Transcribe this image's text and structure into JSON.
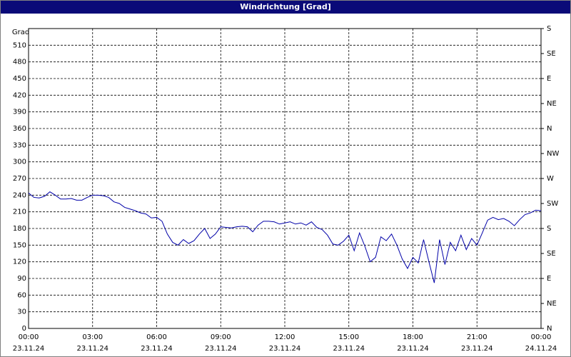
{
  "chart_data": {
    "type": "line",
    "title": "Windrichtung [Grad]",
    "y_label": "Grad",
    "x": [
      0,
      0.25,
      0.5,
      0.75,
      1,
      1.25,
      1.5,
      1.75,
      2,
      2.25,
      2.5,
      2.75,
      3,
      3.25,
      3.5,
      3.75,
      4,
      4.25,
      4.5,
      4.75,
      5,
      5.25,
      5.5,
      5.75,
      6,
      6.25,
      6.5,
      6.75,
      7,
      7.25,
      7.5,
      7.75,
      8,
      8.25,
      8.5,
      8.75,
      9,
      9.25,
      9.5,
      9.75,
      10,
      10.25,
      10.5,
      10.75,
      11,
      11.25,
      11.5,
      11.75,
      12,
      12.25,
      12.5,
      12.75,
      13,
      13.25,
      13.5,
      13.75,
      14,
      14.25,
      14.5,
      14.75,
      15,
      15.25,
      15.5,
      15.75,
      16,
      16.25,
      16.5,
      16.75,
      17,
      17.25,
      17.5,
      17.75,
      18,
      18.25,
      18.5,
      18.75,
      19,
      19.25,
      19.5,
      19.75,
      20,
      20.25,
      20.5,
      20.75,
      21,
      21.25,
      21.5,
      21.75,
      22,
      22.25,
      22.5,
      22.75,
      23,
      23.25,
      23.5,
      23.75,
      24
    ],
    "series": [
      {
        "name": "Windrichtung",
        "color": "#0000a8",
        "values": [
          244,
          236,
          235,
          238,
          246,
          240,
          233,
          233,
          234,
          231,
          231,
          236,
          240,
          240,
          239,
          236,
          228,
          225,
          218,
          215,
          212,
          208,
          206,
          199,
          200,
          193,
          170,
          155,
          150,
          160,
          153,
          158,
          170,
          180,
          162,
          170,
          183,
          182,
          181,
          183,
          184,
          183,
          174,
          186,
          193,
          193,
          192,
          188,
          190,
          192,
          188,
          190,
          186,
          192,
          182,
          178,
          168,
          152,
          150,
          157,
          168,
          140,
          172,
          148,
          120,
          128,
          165,
          158,
          170,
          150,
          125,
          108,
          128,
          118,
          160,
          120,
          82,
          160,
          115,
          155,
          140,
          168,
          142,
          162,
          150,
          172,
          195,
          200,
          196,
          198,
          193,
          185,
          196,
          205,
          208,
          213,
          212
        ]
      }
    ],
    "xlim": [
      0,
      24
    ],
    "xticks": [
      {
        "value": 0,
        "label": "00:00"
      },
      {
        "value": 3,
        "label": "03:00"
      },
      {
        "value": 6,
        "label": "06:00"
      },
      {
        "value": 9,
        "label": "09:00"
      },
      {
        "value": 12,
        "label": "12:00"
      },
      {
        "value": 15,
        "label": "15:00"
      },
      {
        "value": 18,
        "label": "18:00"
      },
      {
        "value": 21,
        "label": "21:00"
      },
      {
        "value": 24,
        "label": "00:00"
      }
    ],
    "xtick_dates": [
      "23.11.24",
      "23.11.24",
      "23.11.24",
      "23.11.24",
      "23.11.24",
      "23.11.24",
      "23.11.24",
      "23.11.24",
      "24.11.24"
    ],
    "ylim": [
      0,
      540
    ],
    "yticks": [
      0,
      30,
      60,
      90,
      120,
      150,
      180,
      210,
      240,
      270,
      300,
      330,
      360,
      390,
      420,
      450,
      480,
      510
    ],
    "y2lim": [
      0,
      540
    ],
    "y2ticks": [
      {
        "value": 0,
        "label": "N"
      },
      {
        "value": 45,
        "label": "NE"
      },
      {
        "value": 90,
        "label": "E"
      },
      {
        "value": 135,
        "label": "SE"
      },
      {
        "value": 180,
        "label": "S"
      },
      {
        "value": 225,
        "label": "SW"
      },
      {
        "value": 270,
        "label": "W"
      },
      {
        "value": 315,
        "label": "NW"
      },
      {
        "value": 360,
        "label": "N"
      },
      {
        "value": 405,
        "label": "NE"
      },
      {
        "value": 450,
        "label": "E"
      },
      {
        "value": 495,
        "label": "SE"
      },
      {
        "value": 540,
        "label": "S"
      }
    ],
    "grid": true
  }
}
